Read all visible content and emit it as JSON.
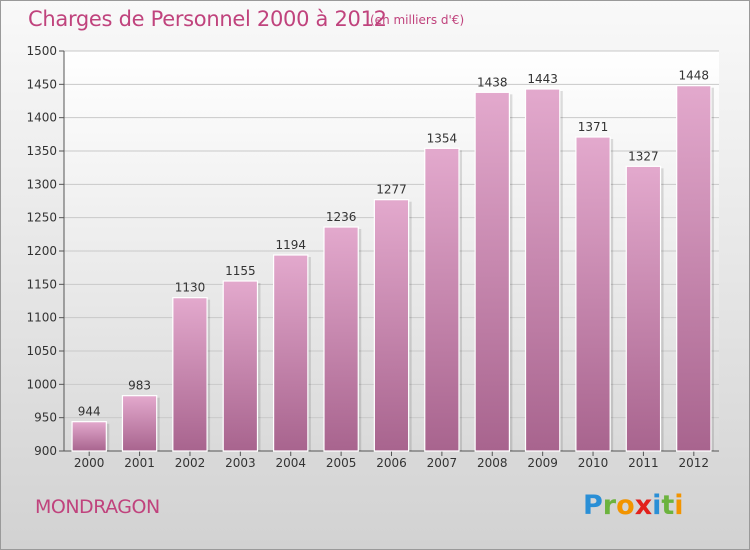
{
  "header": {
    "title": "Charges de Personnel 2000 à 2012",
    "subtitle": "(en milliers d'€)"
  },
  "footer": {
    "commune": "MONDRAGON",
    "logo": {
      "letters": [
        "P",
        "r",
        "o",
        "x",
        "i",
        "t",
        "i"
      ],
      "colors": [
        "#2a8fd6",
        "#6cb33e",
        "#f29400",
        "#e2211c",
        "#2a8fd6",
        "#6cb33e",
        "#f29400"
      ]
    }
  },
  "chart_data": {
    "type": "bar",
    "title": "Charges de Personnel 2000 à 2012",
    "subtitle": "(en milliers d'€)",
    "categories": [
      "2000",
      "2001",
      "2002",
      "2003",
      "2004",
      "2005",
      "2006",
      "2007",
      "2008",
      "2009",
      "2010",
      "2011",
      "2012"
    ],
    "values": [
      944,
      983,
      1130,
      1155,
      1194,
      1236,
      1277,
      1354,
      1438,
      1443,
      1371,
      1327,
      1448
    ],
    "ylim": [
      900,
      1500
    ],
    "yticks": [
      900,
      950,
      1000,
      1050,
      1100,
      1150,
      1200,
      1250,
      1300,
      1350,
      1400,
      1450,
      1500
    ],
    "grid": true,
    "bar_color": "#d98fbb",
    "data_labels": true
  }
}
